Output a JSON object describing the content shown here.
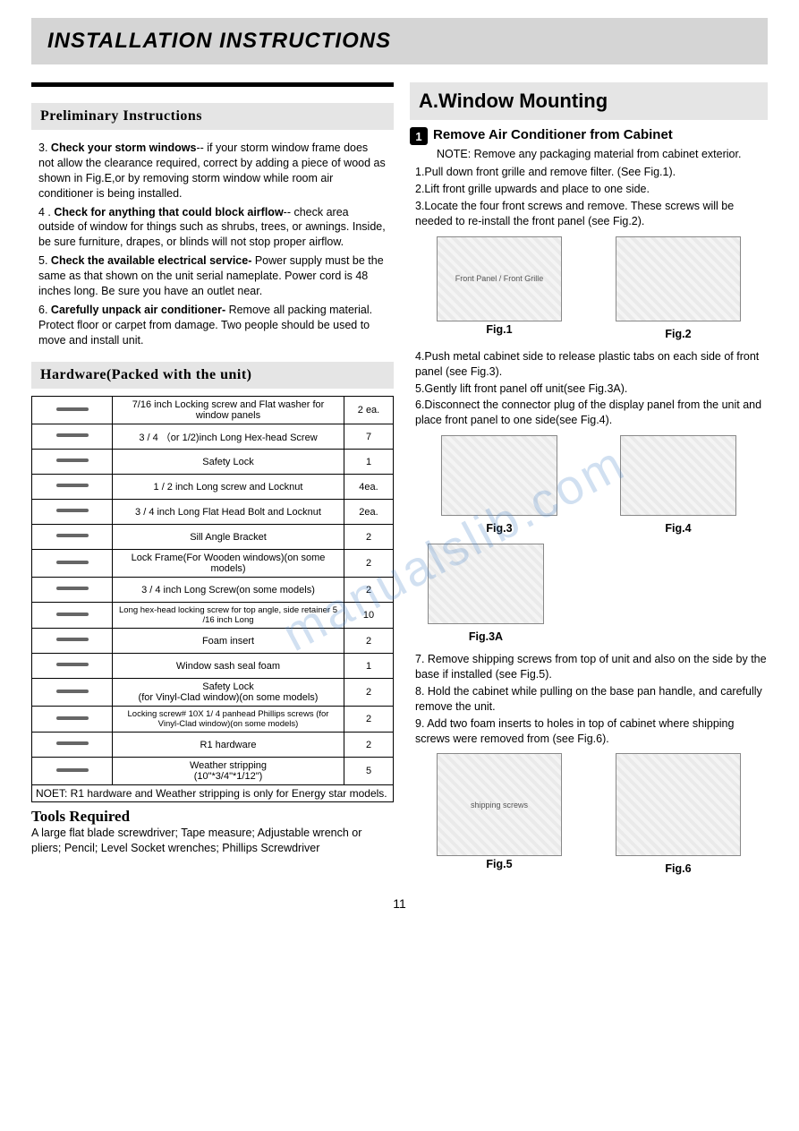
{
  "page_title": "INSTALLATION  INSTRUCTIONS",
  "page_number": "11",
  "watermark": "manualslib.com",
  "left": {
    "prelim_header": "Preliminary Instructions",
    "prelim_items": [
      {
        "num": "3.",
        "lead": "Check your storm  windows",
        "body": "-- if your storm window frame does not allow the clearance required, correct by adding a piece of wood as shown in Fig.E,or by removing storm window while room air conditioner is being installed."
      },
      {
        "num": "4 .",
        "lead": "Check for anything that could block airflow",
        "body": "-- check area outside of window for things such as shrubs, trees, or awnings. Inside, be sure furniture, drapes, or blinds will not stop proper airflow."
      },
      {
        "num": "5.",
        "lead": "Check the available electrical service-",
        "body": " Power supply must be the same as that shown on the unit serial nameplate. Power cord is 48 inches long. Be sure you have an outlet near."
      },
      {
        "num": "6.",
        "lead": "Carefully unpack air conditioner-",
        "body": " Remove all packing material. Protect floor or carpet from damage. Two people should be used to move and install unit."
      }
    ],
    "hardware_header": "Hardware(Packed with the unit)",
    "hardware_rows": [
      {
        "icon": "screw+washer",
        "desc": "7/16 inch Locking screw and Flat washer for window panels",
        "qty": "2 ea."
      },
      {
        "icon": "hex-screw",
        "desc": "3 / 4 （or 1/2)inch Long Hex-head Screw",
        "qty": "7"
      },
      {
        "icon": "lock-bracket",
        "desc": "Safety Lock",
        "qty": "1"
      },
      {
        "icon": "screw-locknut",
        "desc": "1 / 2 inch Long screw and Locknut",
        "qty": "4ea."
      },
      {
        "icon": "bolt-locknut",
        "desc": "3 / 4 inch Long Flat Head Bolt and Locknut",
        "qty": "2ea."
      },
      {
        "icon": "angle-bracket",
        "desc": "Sill Angle Bracket",
        "qty": "2"
      },
      {
        "icon": "lock-frame",
        "desc": "Lock Frame(For Wooden windows)(on some models)",
        "qty": "2"
      },
      {
        "icon": "long-screw",
        "desc": "3 / 4 inch Long Screw(on some models)",
        "qty": "2"
      },
      {
        "icon": "hex-long",
        "desc": "Long hex-head locking screw for top angle, side retainer 5 /16 inch Long",
        "qty": "10"
      },
      {
        "icon": "foam-insert",
        "desc": "Foam insert",
        "qty": "2"
      },
      {
        "icon": "seal-foam",
        "desc": "Window sash seal foam",
        "qty": "1"
      },
      {
        "icon": "safety-lock-vinyl",
        "desc": "Safety Lock\n(for Vinyl-Clad window)(on some models)",
        "qty": "2"
      },
      {
        "icon": "panhead-screw",
        "desc": "Locking screw# 10X 1/ 4 panhead Phillips screws (for Vinyl-Clad window)(on some models)",
        "qty": "2"
      },
      {
        "icon": "r1-hardware",
        "desc": "R1 hardware",
        "qty": "2"
      },
      {
        "icon": "weather-strip",
        "desc": "Weather stripping\n(10\"*3/4\"*1/12\")",
        "qty": "5"
      }
    ],
    "hardware_note": "NOET: R1 hardware and Weather stripping is only for Energy star models.",
    "tools_header": "Tools Required",
    "tools_body": "A large flat blade screwdriver; Tape measure; Adjustable wrench or pliers; Pencil; Level Socket wrenches; Phillips Screwdriver"
  },
  "right": {
    "section_title": "A.Window Mounting",
    "step_num": "1",
    "step_title": "Remove Air Conditioner from Cabinet",
    "step_note": "NOTE: Remove any packaging material from cabinet exterior.",
    "list1": [
      "1.Pull down front grille and remove filter. (See Fig.1).",
      "2.Lift front grille upwards and place to one side.",
      "3.Locate the four front screws and remove. These screws will be needed to re-install the front panel (see Fig.2)."
    ],
    "fig1": {
      "label": "Fig.1",
      "annot": "Front Panel / Front Grille"
    },
    "fig2": {
      "label": "Fig.2",
      "annot": ""
    },
    "list2": [
      "4.Push metal cabinet side to release plastic tabs on each side of front panel (see Fig.3).",
      "5.Gently lift front panel off unit(see Fig.3A).",
      "6.Disconnect the connector plug of the display panel from the unit and place front panel to one side(see Fig.4)."
    ],
    "fig3": {
      "label": "Fig.3"
    },
    "fig4": {
      "label": "Fig.4"
    },
    "fig3a": {
      "label": "Fig.3A"
    },
    "list3": [
      "7. Remove shipping screws from top of unit and also on the side by the base if installed (see Fig.5).",
      "8. Hold the cabinet while pulling on the base pan handle, and carefully remove the unit.",
      "9. Add two foam inserts to holes in top of cabinet where shipping screws were removed from (see Fig.6)."
    ],
    "fig5": {
      "label": "Fig.5",
      "annot": "shipping screws"
    },
    "fig6": {
      "label": "Fig.6"
    }
  }
}
